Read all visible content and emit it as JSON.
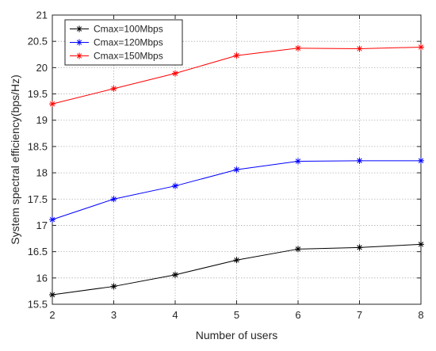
{
  "chart_data": {
    "type": "line",
    "title": "",
    "xlabel": "Number of users",
    "ylabel": "System spectral efficiency(bps/Hz)",
    "x": [
      2,
      3,
      4,
      5,
      6,
      7,
      8
    ],
    "xlim": [
      2,
      8
    ],
    "ylim": [
      15.5,
      21
    ],
    "xticks": [
      "2",
      "3",
      "4",
      "5",
      "6",
      "7",
      "8"
    ],
    "yticks": [
      "15.5",
      "16",
      "16.5",
      "17",
      "17.5",
      "18",
      "18.5",
      "19",
      "19.5",
      "20",
      "20.5",
      "21"
    ],
    "grid": true,
    "legend_position": "top-left",
    "marker": "asterisk",
    "series": [
      {
        "name": "Cmax=100Mbps",
        "color": "#000000",
        "values": [
          15.68,
          15.84,
          16.06,
          16.34,
          16.55,
          16.58,
          16.64
        ]
      },
      {
        "name": "Cmax=120Mbps",
        "color": "#0000ff",
        "values": [
          17.11,
          17.5,
          17.75,
          18.06,
          18.22,
          18.23,
          18.23
        ]
      },
      {
        "name": "Cmax=150Mbps",
        "color": "#ff0000",
        "values": [
          19.31,
          19.6,
          19.89,
          20.23,
          20.37,
          20.36,
          20.39
        ]
      }
    ]
  }
}
